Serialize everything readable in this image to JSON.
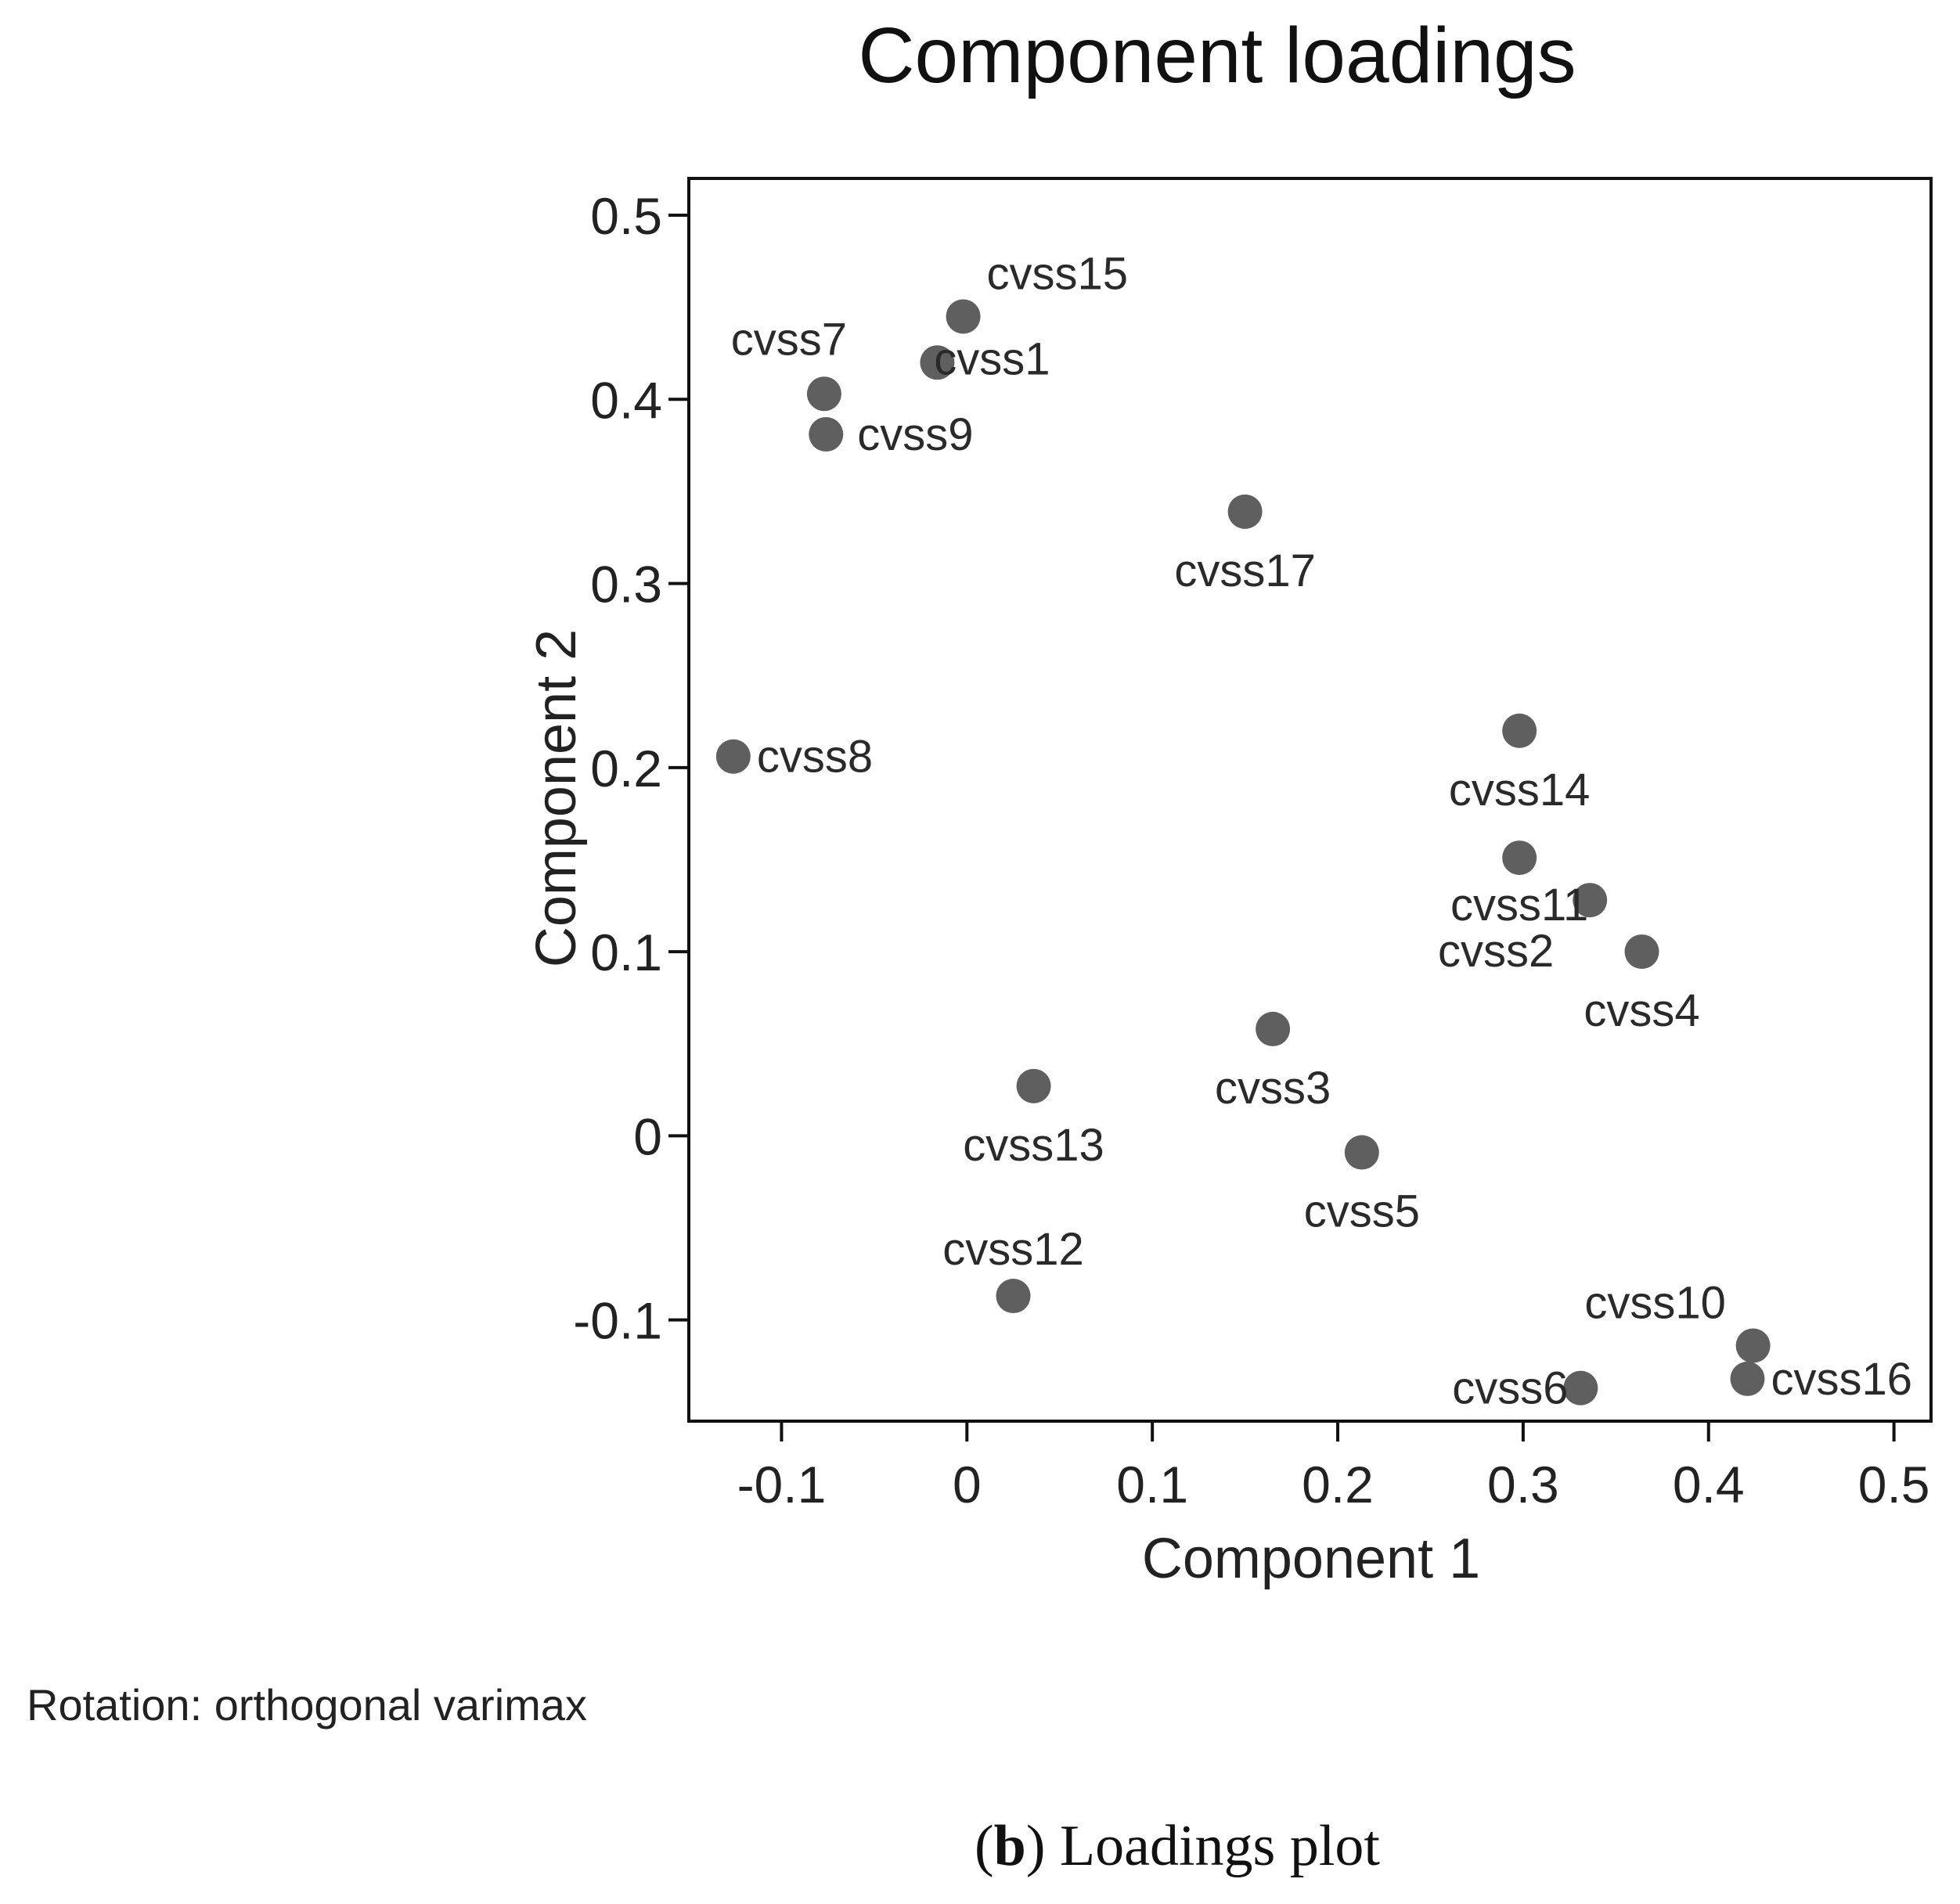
{
  "chart_data": {
    "type": "scatter",
    "title": "Component loadings",
    "xlabel": "Component 1",
    "ylabel": "Component 2",
    "xlim": [
      -0.15,
      0.52
    ],
    "ylim": [
      -0.155,
      0.52
    ],
    "xticks": [
      -0.1,
      0,
      0.1,
      0.2,
      0.3,
      0.4,
      0.5
    ],
    "xtick_labels": [
      "-0.1",
      "0",
      "0.1",
      "0.2",
      "0.3",
      "0.4",
      "0.5"
    ],
    "yticks": [
      -0.1,
      0,
      0.1,
      0.2,
      0.3,
      0.4,
      0.5
    ],
    "ytick_labels": [
      "-0.1",
      "0",
      "0.1",
      "0.2",
      "0.3",
      "0.4",
      "0.5"
    ],
    "grid": false,
    "marker_color": "#5f5f5f",
    "points": [
      {
        "label": "cvss1",
        "x": -0.016,
        "y": 0.42
      },
      {
        "label": "cvss2",
        "x": 0.336,
        "y": 0.128
      },
      {
        "label": "cvss3",
        "x": 0.165,
        "y": 0.058
      },
      {
        "label": "cvss4",
        "x": 0.364,
        "y": 0.1
      },
      {
        "label": "cvss5",
        "x": 0.213,
        "y": -0.009
      },
      {
        "label": "cvss6",
        "x": 0.331,
        "y": -0.137
      },
      {
        "label": "cvss7",
        "x": -0.077,
        "y": 0.403
      },
      {
        "label": "cvss8",
        "x": -0.126,
        "y": 0.206
      },
      {
        "label": "cvss9",
        "x": -0.076,
        "y": 0.381
      },
      {
        "label": "cvss10",
        "x": 0.424,
        "y": -0.114
      },
      {
        "label": "cvss11",
        "x": 0.298,
        "y": 0.151
      },
      {
        "label": "cvss12",
        "x": 0.025,
        "y": -0.087
      },
      {
        "label": "cvss13",
        "x": 0.036,
        "y": 0.027
      },
      {
        "label": "cvss14",
        "x": 0.298,
        "y": 0.22
      },
      {
        "label": "cvss15",
        "x": -0.002,
        "y": 0.445
      },
      {
        "label": "cvss16",
        "x": 0.421,
        "y": -0.132
      },
      {
        "label": "cvss17",
        "x": 0.15,
        "y": 0.339
      }
    ],
    "annotations": [
      "Rotation: orthogonal varimax"
    ]
  },
  "note": "Rotation: orthogonal varimax",
  "caption": {
    "open_paren": "(",
    "letter": "b",
    "rest": ") Loadings plot"
  }
}
